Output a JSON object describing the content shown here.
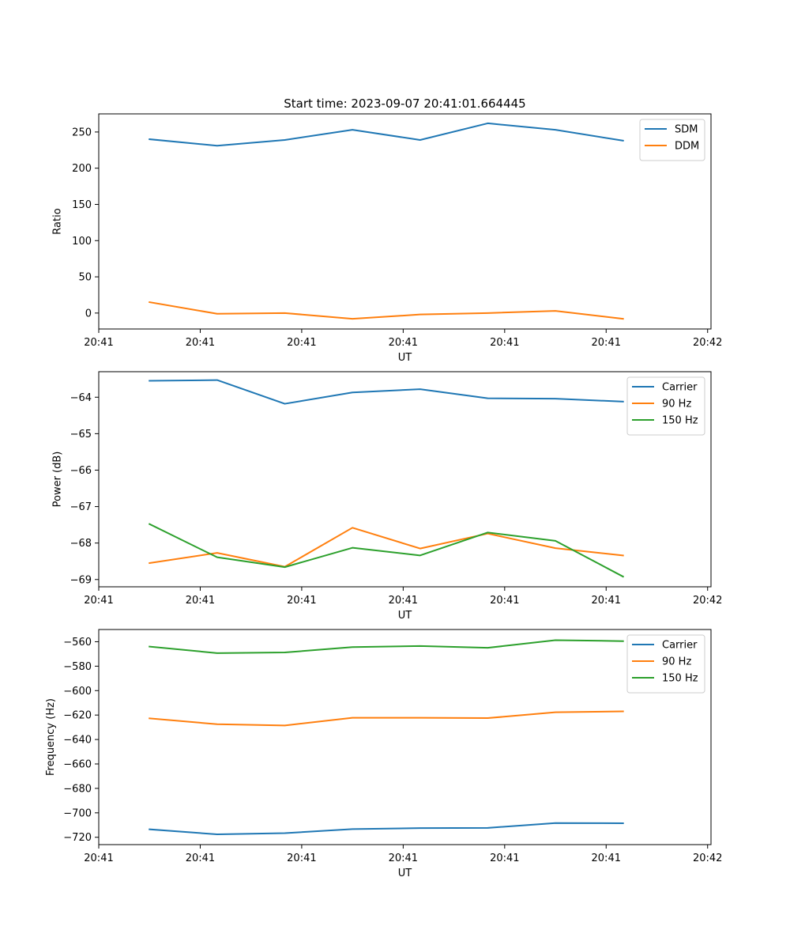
{
  "chart_data": [
    {
      "type": "line",
      "title": "Start time: 2023-09-07 20:41:01.664445",
      "xlabel": "UT",
      "ylabel": "Ratio",
      "xticks": [
        "20:41",
        "20:41",
        "20:41",
        "20:41",
        "20:41",
        "20:41",
        "20:42"
      ],
      "xlim": [
        -0.75,
        8.3
      ],
      "ylim": [
        -22,
        275
      ],
      "yticks": [
        0,
        50,
        100,
        150,
        200,
        250
      ],
      "ytick_labels": [
        "0",
        "50",
        "100",
        "150",
        "200",
        "250"
      ],
      "legend": "top-right",
      "x": [
        0,
        1,
        2,
        3,
        4,
        5,
        6,
        7
      ],
      "series": [
        {
          "name": "SDM",
          "color": "#1f77b4",
          "values": [
            240,
            231,
            239,
            253,
            239,
            262,
            253,
            238
          ]
        },
        {
          "name": "DDM",
          "color": "#ff7f0e",
          "values": [
            15,
            -1,
            0,
            -8,
            -2,
            0,
            3,
            -8
          ]
        }
      ]
    },
    {
      "type": "line",
      "title": "",
      "xlabel": "UT",
      "ylabel": "Power (dB)",
      "xticks": [
        "20:41",
        "20:41",
        "20:41",
        "20:41",
        "20:41",
        "20:41",
        "20:42"
      ],
      "xlim": [
        -0.75,
        8.3
      ],
      "ylim": [
        -69.2,
        -63.3
      ],
      "yticks": [
        -64,
        -65,
        -66,
        -67,
        -68,
        -69
      ],
      "ytick_labels": [
        "−64",
        "−65",
        "−66",
        "−67",
        "−68",
        "−69"
      ],
      "legend": "top-right",
      "x": [
        0,
        1,
        2,
        3,
        4,
        5,
        6,
        7
      ],
      "series": [
        {
          "name": "Carrier",
          "color": "#1f77b4",
          "values": [
            -63.55,
            -63.53,
            -64.18,
            -63.87,
            -63.78,
            -64.03,
            -64.04,
            -64.12
          ]
        },
        {
          "name": "90 Hz",
          "color": "#ff7f0e",
          "values": [
            -68.55,
            -68.27,
            -68.65,
            -67.58,
            -68.15,
            -67.74,
            -68.14,
            -68.34
          ]
        },
        {
          "name": "150 Hz",
          "color": "#2ca02c",
          "values": [
            -67.48,
            -68.39,
            -68.66,
            -68.13,
            -68.34,
            -67.71,
            -67.94,
            -68.92
          ]
        }
      ]
    },
    {
      "type": "line",
      "title": "",
      "xlabel": "UT",
      "ylabel": "Frequency (Hz)",
      "xticks": [
        "20:41",
        "20:41",
        "20:41",
        "20:41",
        "20:41",
        "20:41",
        "20:42"
      ],
      "xlim": [
        -0.75,
        8.3
      ],
      "ylim": [
        -726,
        -550
      ],
      "yticks": [
        -560,
        -580,
        -600,
        -620,
        -640,
        -660,
        -680,
        -700,
        -720
      ],
      "ytick_labels": [
        "−560",
        "−580",
        "−600",
        "−620",
        "−640",
        "−660",
        "−680",
        "−700",
        "−720"
      ],
      "legend": "top-right",
      "x": [
        0,
        1,
        2,
        3,
        4,
        5,
        6,
        7
      ],
      "series": [
        {
          "name": "Carrier",
          "color": "#1f77b4",
          "values": [
            -713.5,
            -717.6,
            -716.6,
            -713.3,
            -712.5,
            -712.3,
            -708.4,
            -708.5
          ]
        },
        {
          "name": "90 Hz",
          "color": "#ff7f0e",
          "values": [
            -622.7,
            -627.5,
            -628.5,
            -622.2,
            -622.2,
            -622.5,
            -617.7,
            -617.0
          ]
        },
        {
          "name": "150 Hz",
          "color": "#2ca02c",
          "values": [
            -564.0,
            -569.3,
            -568.8,
            -564.4,
            -563.5,
            -565.0,
            -558.7,
            -559.5
          ]
        }
      ]
    }
  ]
}
